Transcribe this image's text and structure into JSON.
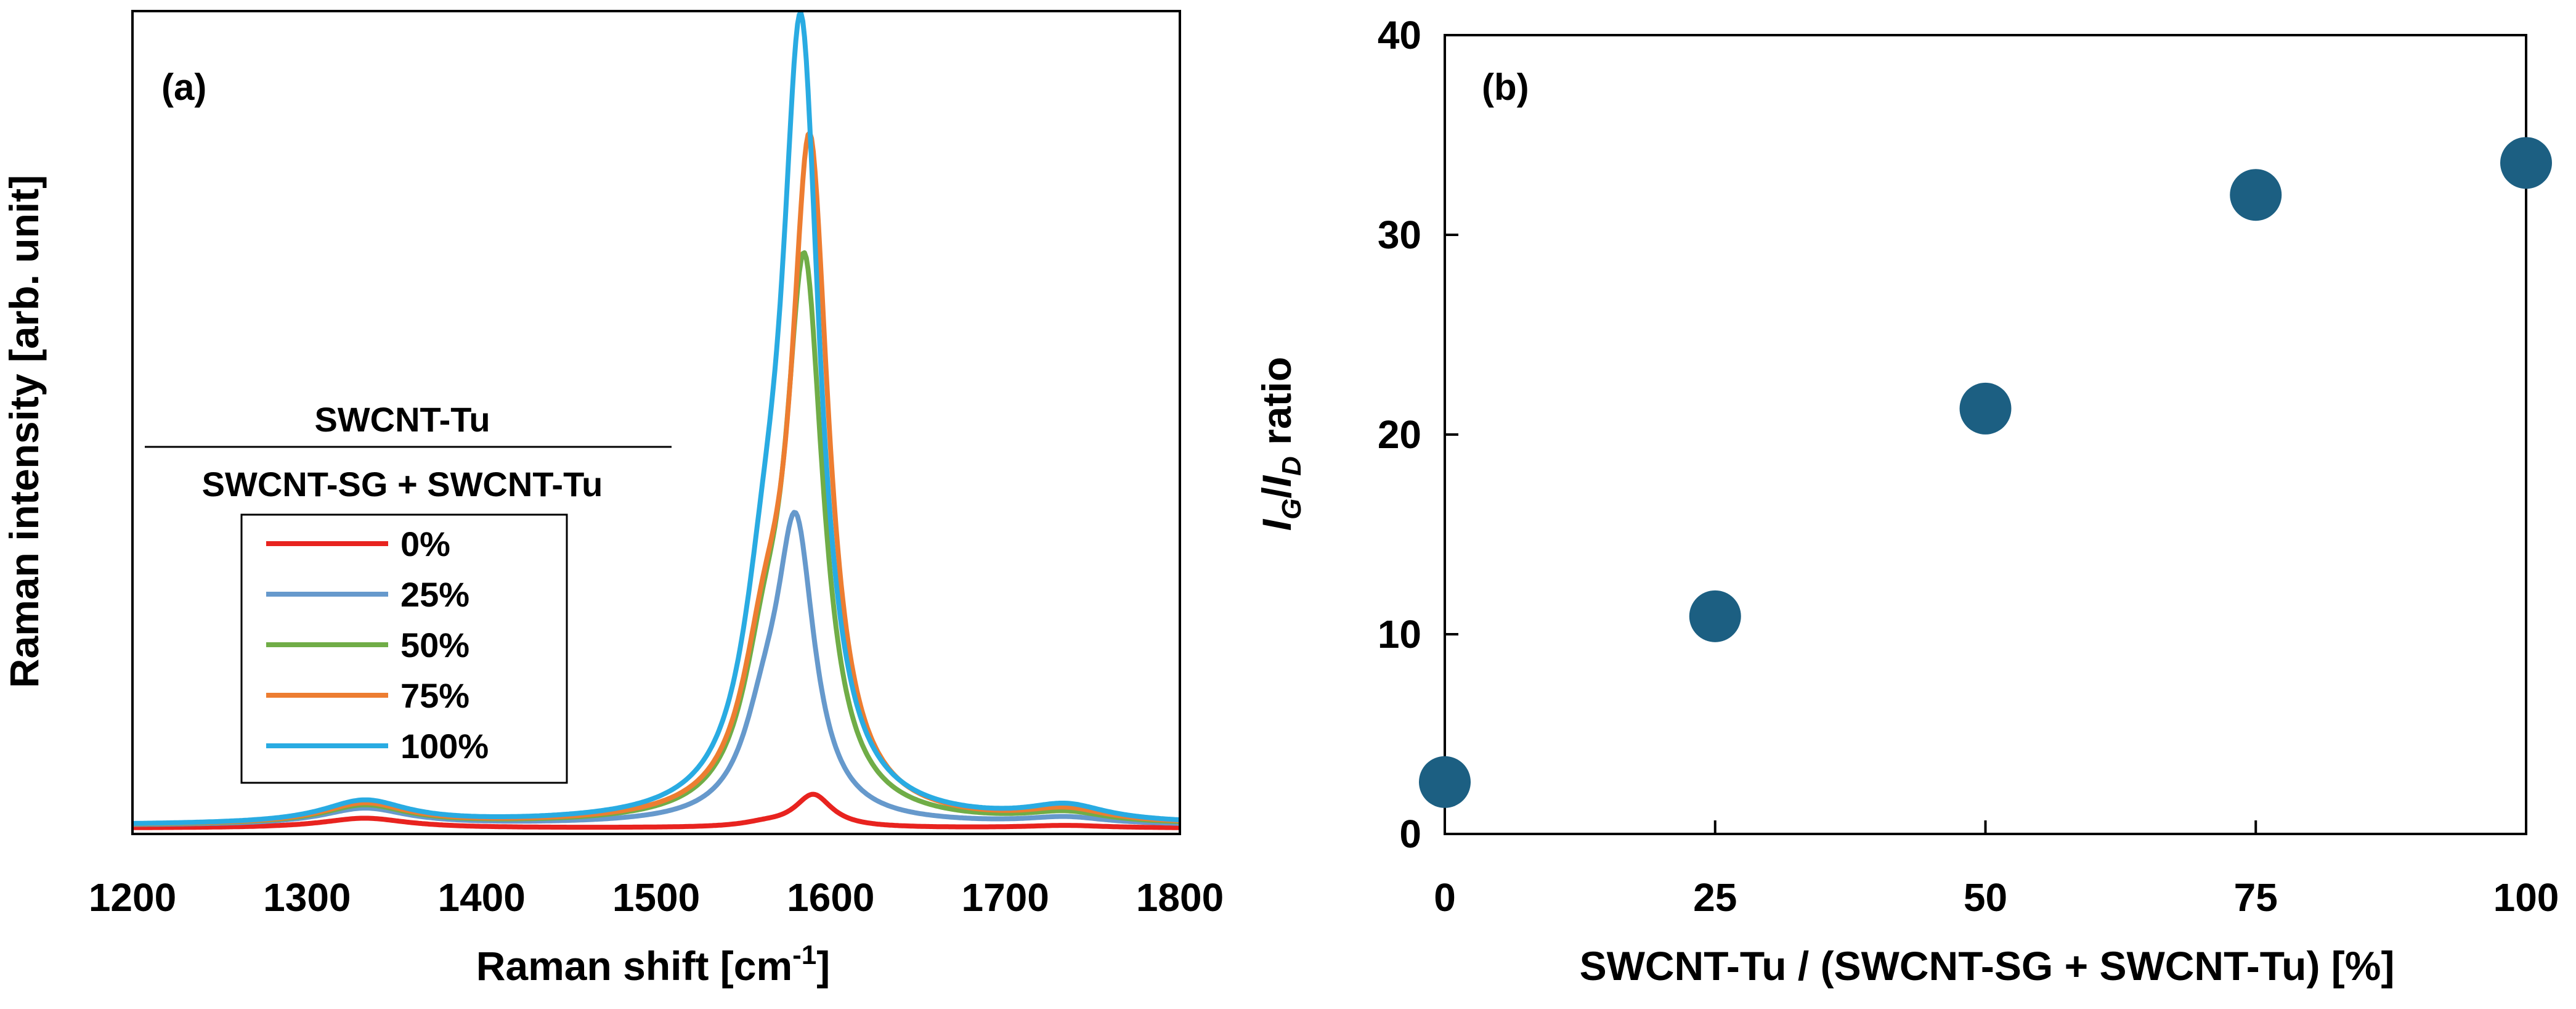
{
  "chart_data": [
    {
      "panel": "(a)",
      "type": "line",
      "title": "",
      "xlabel": "Raman shift [cm",
      "xlabel_sup": "-1",
      "xlabel_end": "]",
      "ylabel": "Raman intensity [arb. unit]",
      "xlim": [
        1200,
        1800
      ],
      "ylim": [
        0,
        100
      ],
      "xticks": [
        "1200",
        "1300",
        "1400",
        "1500",
        "1600",
        "1700",
        "1800"
      ],
      "yticks_visible": false,
      "legend": {
        "placement": "middle-left",
        "title_numerator": "SWCNT-Tu",
        "title_denominator": "SWCNT-SG + SWCNT-Tu"
      },
      "series": [
        {
          "name": "0%",
          "color": "#E8231F",
          "params": {
            "base": 0.7,
            "d": 1.2,
            "g": 4.0,
            "shoulder": 0.4,
            "gpos": 1590,
            "tail": 0.3
          }
        },
        {
          "name": "25%",
          "color": "#6699CC",
          "params": {
            "base": 1.0,
            "d": 2.0,
            "g": 34,
            "shoulder": 9,
            "gpos": 1580,
            "tail": 0.8
          }
        },
        {
          "name": "50%",
          "color": "#70AD47",
          "params": {
            "base": 1.0,
            "d": 2.3,
            "g": 65,
            "shoulder": 14,
            "gpos": 1585,
            "tail": 1.2
          }
        },
        {
          "name": "75%",
          "color": "#ED7D31",
          "params": {
            "base": 1.0,
            "d": 2.5,
            "g": 80,
            "shoulder": 15,
            "gpos": 1588,
            "tail": 1.5
          }
        },
        {
          "name": "100%",
          "color": "#29ABE2",
          "params": {
            "base": 1.0,
            "d": 2.8,
            "g": 92,
            "shoulder": 18,
            "gpos": 1583,
            "tail": 1.9
          }
        }
      ]
    },
    {
      "panel": "(b)",
      "type": "scatter",
      "title": "",
      "xlabel": "SWCNT-Tu / (SWCNT-SG + SWCNT-Tu) [%]",
      "ylabel_parts": {
        "i": "I",
        "g": "G",
        "slash": "/",
        "d": "D",
        "rest": " ratio"
      },
      "xlim": [
        0,
        100
      ],
      "ylim": [
        0,
        40
      ],
      "xticks": [
        "0",
        "25",
        "50",
        "75",
        "100"
      ],
      "yticks": [
        "0",
        "10",
        "20",
        "30",
        "40"
      ],
      "marker_color": "#1C5F82",
      "x": [
        0,
        25,
        50,
        75,
        100
      ],
      "y": [
        2.6,
        10.9,
        21.3,
        32.0,
        33.6
      ]
    }
  ]
}
